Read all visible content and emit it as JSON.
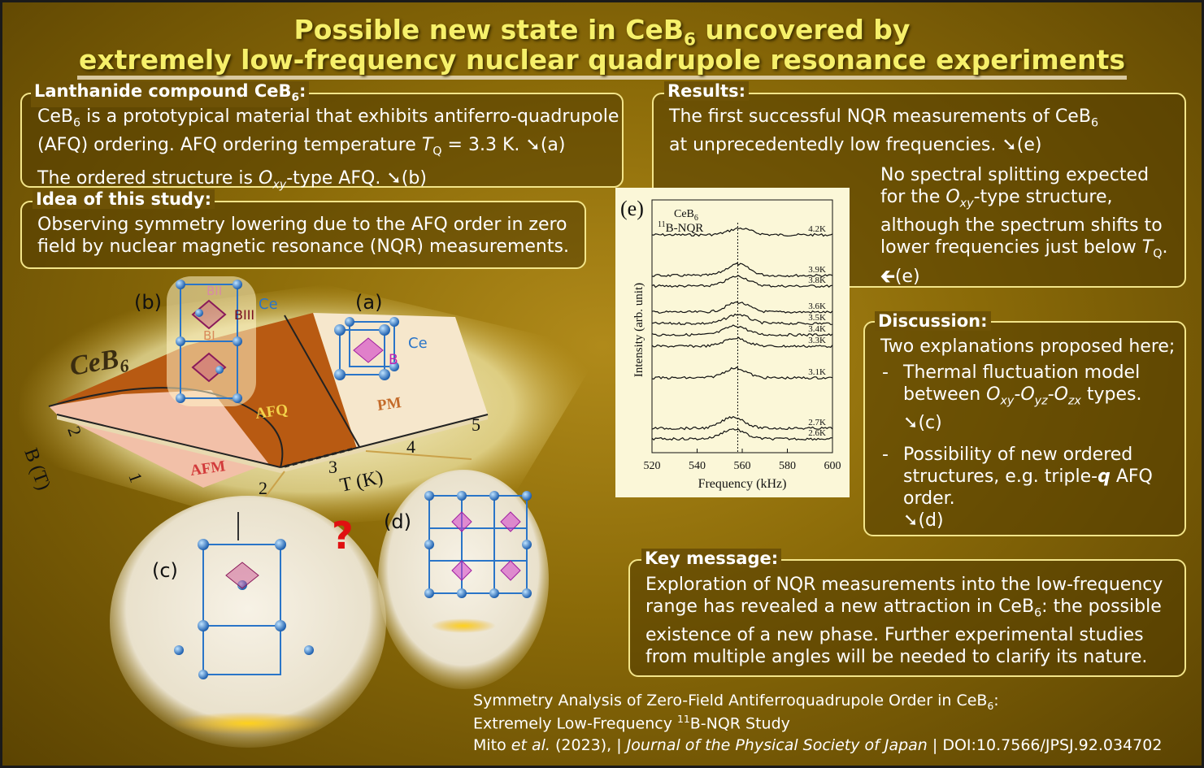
{
  "title": {
    "line1_a": "Possible new state in CeB",
    "line1_sub": "6",
    "line1_b": " uncovered by",
    "line2": "extremely low-frequency nuclear quadrupole resonance experiments"
  },
  "lanthanide": {
    "header": "Lanthanide compound CeB",
    "header_sub": "6",
    "header_end": ":",
    "p1_a": "CeB",
    "p1_sub": "6",
    "p1_b": " is a prototypical material that exhibits antiferro-quadrupole",
    "p1_c": "(AFQ) ordering. AFQ ordering temperature ",
    "p1_T": "T",
    "p1_Tsub": "Q",
    "p1_d": " = 3.3 K.  ",
    "arrow": "➘",
    "ref_a": "(a)",
    "p2_a": "The ordered structure is ",
    "p2_O": "O",
    "p2_Osub": "xy",
    "p2_b": "-type AFQ.  ",
    "ref_b": "(b)"
  },
  "idea": {
    "header": "Idea of this study:",
    "line1": "Observing symmetry lowering due to the AFQ order in zero",
    "line2": "field by nuclear magnetic resonance (NQR) measurements."
  },
  "results": {
    "header": "Results:",
    "line1_a": "The first successful NQR measurements of CeB",
    "line1_sub": "6",
    "line2": "at unprecedentedly low frequencies.  ",
    "ref_e": "(e)",
    "n1": "No spectral splitting expected",
    "n2_a": "for the ",
    "n2_O": "O",
    "n2_sub": "xy",
    "n2_b": "-type structure,",
    "n3": "although the spectrum shifts to",
    "n4_a": "lower frequencies just below ",
    "n4_T": "T",
    "n4_sub": "Q",
    "n4_b": ".",
    "n5_arrow": "🡰",
    "n5": "(e)"
  },
  "discussion": {
    "header": "Discussion:",
    "intro": "Two explanations proposed here;",
    "b1_l1": "Thermal fluctuation model",
    "b1_l2_a": "between ",
    "b1_O1": "O",
    "b1_s1": "xy",
    "b1_O2": "-O",
    "b1_s2": "yz",
    "b1_O3": "-O",
    "b1_s3": "zx",
    "b1_l2_b": " types.",
    "b1_ref": "(c)",
    "b2_l1": "Possibility of new ordered",
    "b2_l2_a": "structures, e.g. triple-",
    "b2_q": "q",
    "b2_l2_b": " AFQ",
    "b2_l3": "order.",
    "b2_ref": "(d)",
    "dash": "-"
  },
  "key": {
    "header": "Key message:",
    "l1": "Exploration of NQR measurements into the low-frequency",
    "l2_a": "range has revealed a new attraction in CeB",
    "l2_sub": "6",
    "l2_b": ": the possible",
    "l3": "existence of a new phase. Further experimental studies",
    "l4": "from multiple angles will be needed to clarify its nature."
  },
  "citation": {
    "l1_a": "Symmetry Analysis of Zero-Field Antiferroquadrupole Order in CeB",
    "l1_sub": "6",
    "l1_b": ":",
    "l2_a": "Extremely Low-Frequency ",
    "l2_sup": "11",
    "l2_b": "B-NQR Study",
    "authors": "Mito ",
    "etal": "et al.",
    "year": " (2023), | ",
    "journal": "Journal of the Physical Society of Japan",
    "doi": " | DOI:10.7566/JPSJ.92.034702"
  },
  "figure": {
    "panel_b": "(b)",
    "panel_a": "(a)",
    "panel_c": "(c)",
    "panel_d": "(d)",
    "compound": "CeB",
    "compound_sub": "6",
    "b_label_bii": "BII",
    "b_label_biii": "BIII",
    "b_label_bi": "BI",
    "ce_label": "Ce",
    "b_label": "B",
    "phase_afq": "AFQ",
    "phase_pm": "PM",
    "phase_afm": "AFM",
    "axis_t": "T (K)",
    "axis_b": "B (T)",
    "t_ticks": [
      "2",
      "3",
      "4",
      "5"
    ],
    "b_ticks": [
      "1",
      "2"
    ],
    "question": "?",
    "colors": {
      "afq": "#b85a12",
      "afm": "#f2c0a8",
      "pm": "#f6e7cc",
      "ce": "#2b7fd0",
      "b": "#d23cc8"
    }
  },
  "chart_data": {
    "type": "line",
    "panel": "(e)",
    "title_l1": "CeB",
    "title_sub": "6",
    "title_l2_sup": "11",
    "title_l2": "B-NQR",
    "xlabel": "Frequency (kHz)",
    "ylabel": "Intensity (arb. unit)",
    "xlim": [
      520,
      600
    ],
    "xticks": [
      "520",
      "540",
      "560",
      "580",
      "600"
    ],
    "peak_marker_khz": 558,
    "series": [
      {
        "name": "4.2K",
        "peak_khz": 559,
        "offset": 0
      },
      {
        "name": "3.9K",
        "peak_khz": 558,
        "offset": 1
      },
      {
        "name": "3.8K",
        "peak_khz": 558,
        "offset": 2
      },
      {
        "name": "3.6K",
        "peak_khz": 558,
        "offset": 3
      },
      {
        "name": "3.5K",
        "peak_khz": 558,
        "offset": 4
      },
      {
        "name": "3.4K",
        "peak_khz": 557,
        "offset": 5
      },
      {
        "name": "3.3K",
        "peak_khz": 557,
        "offset": 6
      },
      {
        "name": "3.1K",
        "peak_khz": 557,
        "offset": 7
      },
      {
        "name": "2.7K",
        "peak_khz": 556,
        "offset": 8
      },
      {
        "name": "2.6K",
        "peak_khz": 556,
        "offset": 9
      }
    ]
  }
}
